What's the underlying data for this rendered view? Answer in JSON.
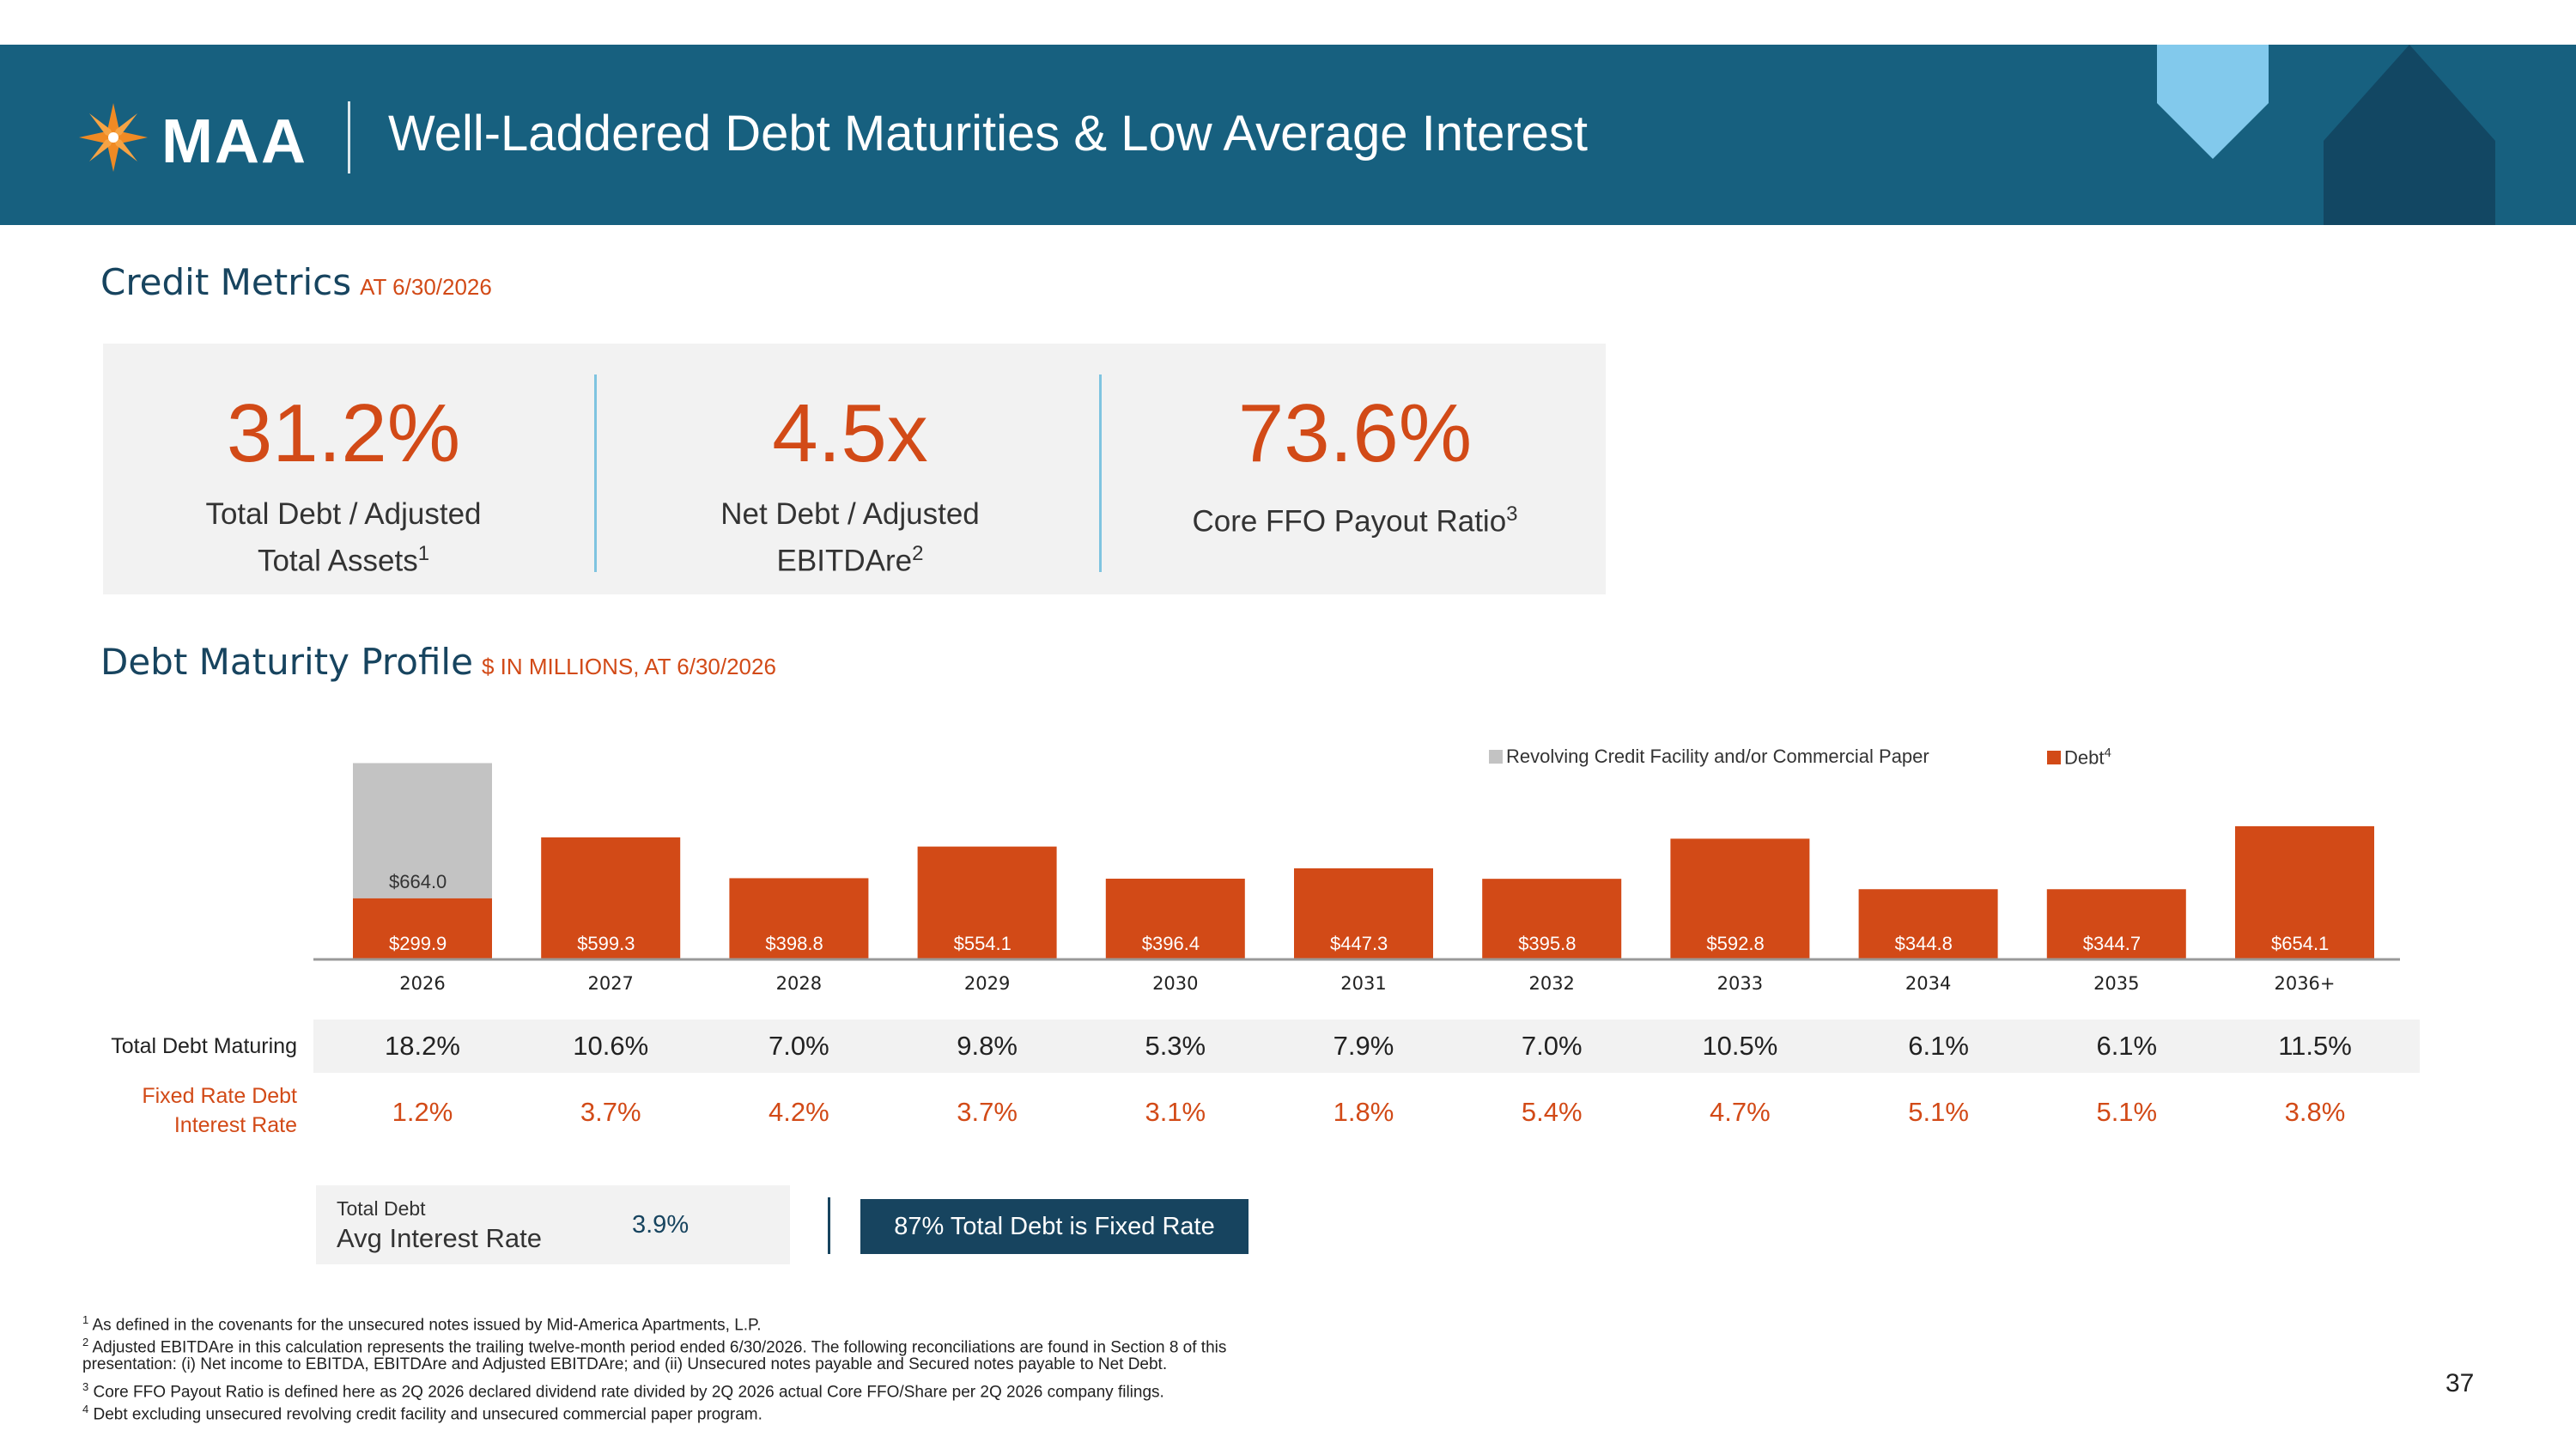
{
  "header": {
    "logo_text": "MAA",
    "title": "Well-Laddered Debt Maturities & Low Average Interest"
  },
  "credit_metrics": {
    "title": "Credit Metrics",
    "subtitle": "AT 6/30/2026",
    "items": [
      {
        "value": "31.2%",
        "label_line1": "Total Debt / Adjusted",
        "label_line2": "Total Assets",
        "footnote": "1"
      },
      {
        "value": "4.5x",
        "label_line1": "Net Debt / Adjusted",
        "label_line2": "EBITDAre",
        "footnote": "2"
      },
      {
        "value": "73.6%",
        "label_line1": "Core FFO Payout Ratio",
        "label_line2": "",
        "footnote": "3"
      }
    ]
  },
  "debt_profile": {
    "title": "Debt Maturity Profile",
    "subtitle": "$ IN MILLIONS, AT 6/30/2026"
  },
  "chart_data": {
    "type": "bar",
    "stacked": true,
    "categories": [
      "2026",
      "2027",
      "2028",
      "2029",
      "2030",
      "2031",
      "2032",
      "2033",
      "2034",
      "2035",
      "2036+"
    ],
    "series": [
      {
        "name": "Debt",
        "footnote": "4",
        "color": "#d24a17",
        "values": [
          299.9,
          599.3,
          398.8,
          554.1,
          396.4,
          447.3,
          395.8,
          592.8,
          344.8,
          344.7,
          654.1
        ]
      },
      {
        "name": "Revolving Credit Facility and/or Commercial Paper",
        "color": "#c3c3c3",
        "values": [
          664.0,
          0,
          0,
          0,
          0,
          0,
          0,
          0,
          0,
          0,
          0
        ]
      }
    ],
    "data_labels": [
      "$299.9",
      "$599.3",
      "$398.8",
      "$554.1",
      "$396.4",
      "$447.3",
      "$395.8",
      "$592.8",
      "$344.8",
      "$344.7",
      "$654.1"
    ],
    "extra_labels": [
      {
        "category": "2026",
        "label": "$664.0"
      }
    ],
    "legend_position": "top-right",
    "grid": false,
    "ylim": [
      0,
      970
    ]
  },
  "table": {
    "row1_label": "Total Debt Maturing",
    "row1_values": [
      "18.2%",
      "10.6%",
      "7.0%",
      "9.8%",
      "5.3%",
      "7.9%",
      "7.0%",
      "10.5%",
      "6.1%",
      "6.1%",
      "11.5%"
    ],
    "row2_label_line1": "Fixed Rate Debt",
    "row2_label_line2": "Interest Rate",
    "row2_values": [
      "1.2%",
      "3.7%",
      "4.2%",
      "3.7%",
      "3.1%",
      "1.8%",
      "5.4%",
      "4.7%",
      "5.1%",
      "5.1%",
      "3.8%"
    ]
  },
  "summary": {
    "avg_label_line1": "Total Debt",
    "avg_label_line2": "Avg Interest Rate",
    "avg_value": "3.9%",
    "fixed_text": "87% Total Debt is Fixed Rate"
  },
  "footnotes": {
    "fn1_num": "1",
    "fn1": "As defined in the covenants for the unsecured notes issued by Mid-America Apartments, L.P.",
    "fn2_num": "2",
    "fn2a": "Adjusted EBITDAre in this calculation represents the trailing twelve-month period ended 6/30/2026. The following reconciliations are found in Section 8 of this",
    "fn2b": "presentation: (i) Net income to EBITDA, EBITDAre and Adjusted EBITDAre; and (ii) Unsecured notes payable and Secured notes payable to Net Debt.",
    "fn3_num": "3",
    "fn3": "Core FFO Payout Ratio is defined here as 2Q 2026 declared dividend rate divided by 2Q 2026 actual Core FFO/Share per 2Q 2026 company filings.",
    "fn4_num": "4",
    "fn4": "Debt excluding unsecured revolving credit facility and unsecured commercial paper program."
  },
  "page_number": "37",
  "colors": {
    "primary": "#17607f",
    "accent": "#d24a17",
    "navy": "#17445f",
    "light_blue": "#7fc4e0",
    "revolver": "#c3c3c3"
  }
}
